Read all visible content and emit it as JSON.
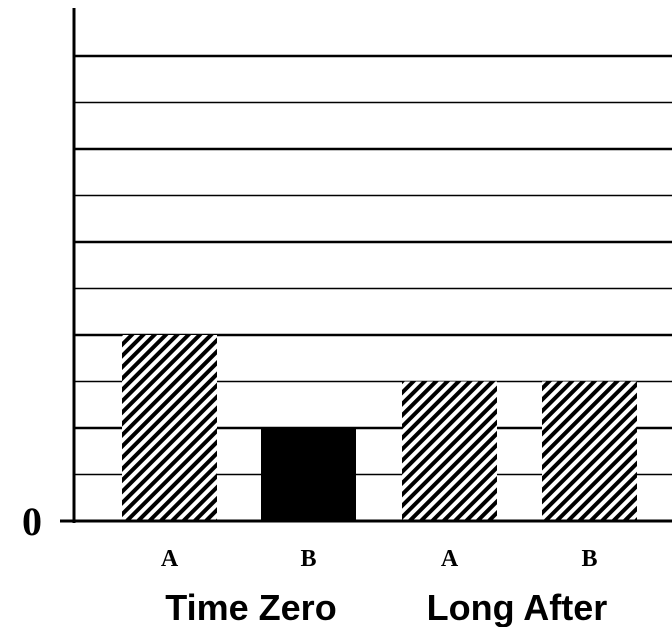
{
  "chart_data": {
    "type": "bar",
    "title": "",
    "xlabel": "",
    "ylabel": "",
    "ylim": [
      0,
      10
    ],
    "y_tick_labels": [
      {
        "value": 0,
        "label": "0"
      }
    ],
    "grid": true,
    "groups": [
      {
        "label": "Time Zero",
        "categories": [
          "A",
          "B"
        ]
      },
      {
        "label": "Long After",
        "categories": [
          "A",
          "B"
        ]
      }
    ],
    "bars": [
      {
        "group": "Time Zero",
        "category": "A",
        "value": 4,
        "fill": "hatched"
      },
      {
        "group": "Time Zero",
        "category": "B",
        "value": 2,
        "fill": "solid"
      },
      {
        "group": "Long After",
        "category": "A",
        "value": 3,
        "fill": "hatched"
      },
      {
        "group": "Long After",
        "category": "B",
        "value": 3,
        "fill": "hatched"
      }
    ],
    "colors": {
      "bar_solid": "#000000",
      "hatch": "#000000",
      "grid": "#000000",
      "background": "#ffffff"
    }
  }
}
